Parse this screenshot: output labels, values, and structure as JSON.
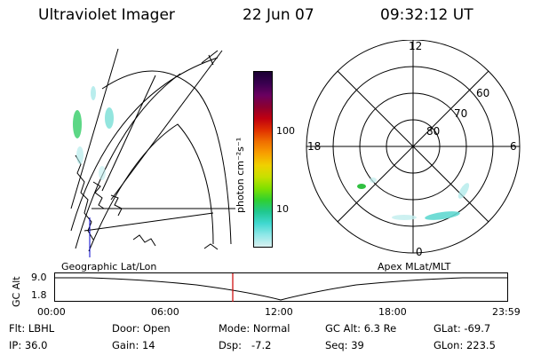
{
  "header": {
    "title": "Ultraviolet Imager",
    "date": "22 Jun 07",
    "time": "09:32:12 UT"
  },
  "geo_panel": {
    "label": "Geographic Lat/Lon"
  },
  "polar_panel": {
    "label": "Apex MLat/MLT",
    "mlt_labels": {
      "top": "12",
      "left": "18",
      "right": "6",
      "bottom": "0"
    },
    "lat_labels": [
      "60",
      "70",
      "80"
    ]
  },
  "colorbar": {
    "unit": "photon cm⁻²s⁻¹",
    "ticks": [
      "100",
      "10"
    ],
    "colors": [
      "#1a0033",
      "#3a0050",
      "#6a0060",
      "#8c0030",
      "#c00010",
      "#e03000",
      "#f07000",
      "#f8a000",
      "#f0d000",
      "#c8e000",
      "#80e000",
      "#30d030",
      "#20c890",
      "#40d8d0",
      "#90e8e8",
      "#d8f0f0"
    ]
  },
  "altitude_plot": {
    "ylabel": "GC Alt",
    "yticks": [
      "9.0",
      "1.8"
    ],
    "xticks": [
      "00:00",
      "06:00",
      "12:00",
      "18:00",
      "23:59"
    ],
    "marker_color": "#cc0000"
  },
  "info": {
    "row1": [
      "Flt: LBHL",
      "Door: Open",
      "Mode: Normal",
      "GC Alt: 6.3 Re",
      "GLat: -69.7"
    ],
    "row2": [
      "IP: 36.0",
      "Gain: 14",
      "Dsp:   -7.2",
      "Seq: 39",
      "GLon: 223.5"
    ]
  }
}
